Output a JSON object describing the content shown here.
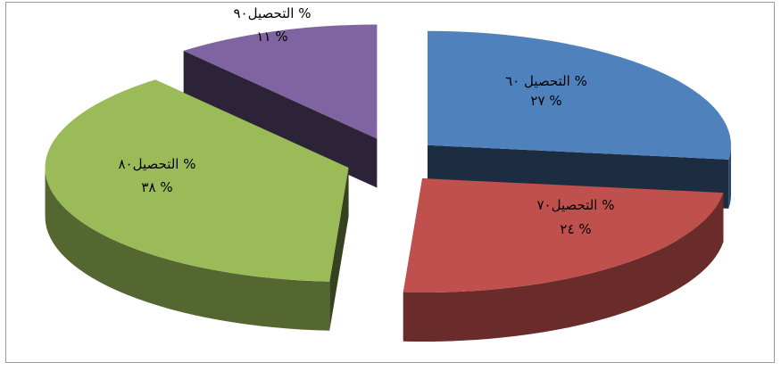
{
  "chart_data": {
    "type": "pie",
    "style": "3d-exploded",
    "slices": [
      {
        "label": "التحصيل ٦٠ %",
        "value_label": "٢٧ %",
        "value": 27,
        "color": "#4F81BD"
      },
      {
        "label": "التحصيل٧٠ %",
        "value_label": "٢٤ %",
        "value": 24,
        "color": "#C0504D"
      },
      {
        "label": "التحصيل٨٠ %",
        "value_label": "٣٨ %",
        "value": 38,
        "color": "#9BBB59"
      },
      {
        "label": "التحصيل٩٠ %",
        "value_label": "١١ %",
        "value": 11,
        "color": "#8064A2"
      }
    ],
    "legend": "none",
    "grid": false
  }
}
